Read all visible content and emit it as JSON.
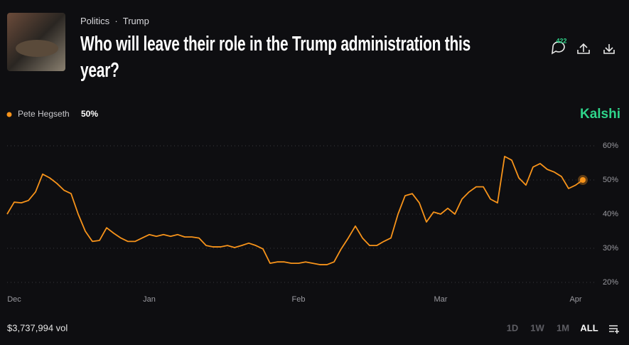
{
  "breadcrumb": [
    "Politics",
    "Trump"
  ],
  "title": "Who will leave their role in the Trump administration this year?",
  "comment_count": "422",
  "brand": "Kalshi",
  "volume": "$3,737,994 vol",
  "ranges": [
    "1D",
    "1W",
    "1M",
    "ALL"
  ],
  "chart_data": {
    "type": "line",
    "categories": [
      null,
      "Dec",
      null,
      null,
      null,
      null,
      null,
      null,
      null,
      null,
      null,
      null,
      null,
      null,
      null,
      null,
      null,
      null,
      null,
      null,
      "Jan",
      null,
      null,
      null,
      null,
      null,
      null,
      null,
      null,
      null,
      null,
      null,
      null,
      null,
      null,
      null,
      null,
      null,
      null,
      null,
      null,
      "Feb",
      null,
      null,
      null,
      null,
      null,
      null,
      null,
      null,
      null,
      null,
      null,
      null,
      null,
      null,
      null,
      null,
      null,
      null,
      null,
      "Mar",
      null,
      null,
      null,
      null,
      null,
      null,
      null,
      null,
      null,
      null,
      null,
      null,
      null,
      null,
      null,
      null,
      null,
      null,
      "Apr",
      null
    ],
    "series": [
      {
        "name": "Pete Hegseth",
        "color": "#f7931a",
        "last_label": "50%",
        "values": [
          40,
          43.5,
          43.3,
          44,
          46.5,
          51.7,
          50.6,
          49,
          47,
          46,
          40,
          35,
          32,
          32.3,
          36,
          34.4,
          33,
          32,
          32,
          33,
          34,
          33.5,
          34,
          33.5,
          34,
          33.3,
          33.3,
          33,
          30.8,
          30.4,
          30.4,
          30.8,
          30.2,
          30.8,
          31.5,
          30.8,
          29.8,
          25.6,
          26,
          26,
          25.6,
          25.6,
          26,
          25.6,
          25.2,
          25.2,
          26,
          29.8,
          33,
          36.5,
          33,
          30.8,
          30.8,
          32,
          33,
          40,
          45.4,
          46,
          43.3,
          37.7,
          40.6,
          40,
          41.7,
          40,
          44.4,
          46.5,
          48,
          48,
          44.4,
          43.3,
          56.9,
          55.8,
          50.6,
          48.5,
          53.8,
          54.8,
          53.1,
          52.3,
          51,
          47.5,
          48.5,
          50
        ]
      }
    ],
    "ylim": [
      20,
      60
    ],
    "yticks": [
      {
        "value": 60,
        "label": "60%"
      },
      {
        "value": 50,
        "label": "50%"
      },
      {
        "value": 40,
        "label": "40%"
      },
      {
        "value": 30,
        "label": "30%"
      },
      {
        "value": 20,
        "label": "20%"
      }
    ],
    "grid": true
  }
}
